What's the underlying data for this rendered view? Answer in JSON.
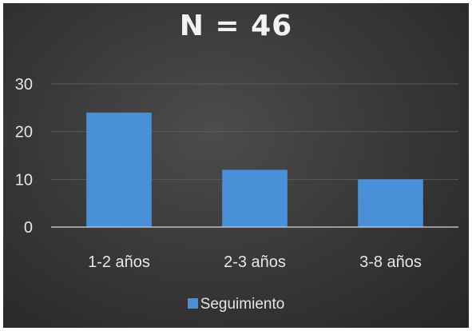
{
  "chart_data": {
    "type": "bar",
    "title": "N = 46",
    "categories": [
      "1-2 años",
      "2-3 años",
      "3-8 años"
    ],
    "series": [
      {
        "name": "Seguimiento",
        "values": [
          24,
          12,
          10
        ],
        "color": "#4a90d9"
      }
    ],
    "ylim": [
      0,
      30
    ],
    "yticks": [
      0,
      10,
      20,
      30
    ],
    "grid": true,
    "legend": "bottom"
  }
}
